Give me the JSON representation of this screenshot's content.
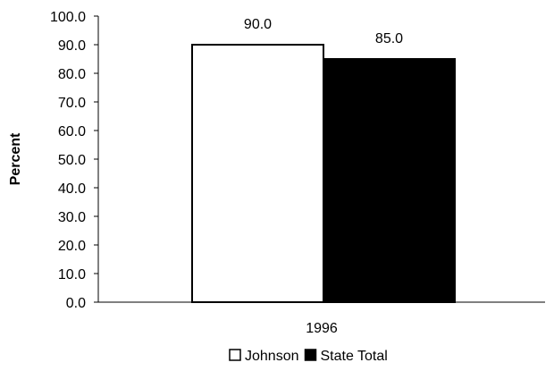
{
  "chart_data": {
    "type": "bar",
    "title": "",
    "xlabel": "",
    "ylabel": "Percent",
    "categories": [
      "1996"
    ],
    "series": [
      {
        "name": "Johnson",
        "values": [
          90.0
        ],
        "color": "#ffffff",
        "data_labels": [
          "90.0"
        ]
      },
      {
        "name": "State Total",
        "values": [
          85.0
        ],
        "color": "#000000",
        "data_labels": [
          "85.0"
        ]
      }
    ],
    "ylim": [
      0,
      100
    ],
    "yticks": [
      0,
      10,
      20,
      30,
      40,
      50,
      60,
      70,
      80,
      90,
      100
    ],
    "ytick_labels": [
      "0.0",
      "10.0",
      "20.0",
      "30.0",
      "40.0",
      "50.0",
      "60.0",
      "70.0",
      "80.0",
      "90.0",
      "100.0"
    ],
    "grid": false,
    "legend_position": "bottom"
  }
}
